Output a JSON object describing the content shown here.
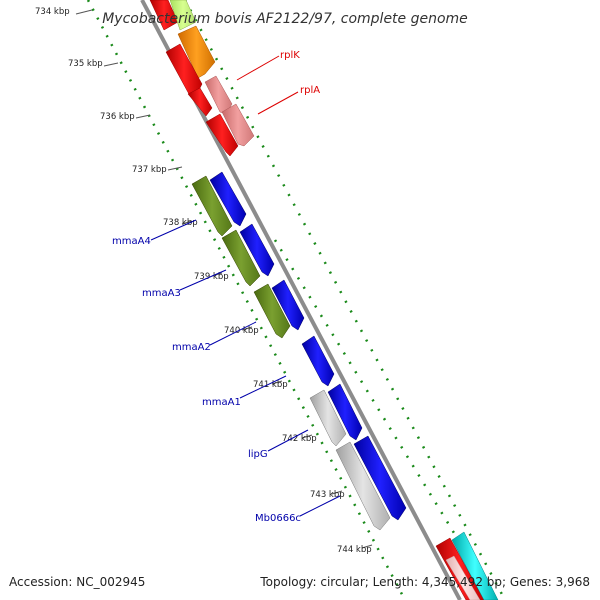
{
  "title": "Mycobacterium bovis AF2122/97, complete genome",
  "ticks": [
    "734 kbp",
    "735 kbp",
    "736 kbp",
    "737 kbp",
    "738 kbp",
    "739 kbp",
    "740 kbp",
    "741 kbp",
    "742 kbp",
    "743 kbp",
    "744 kbp"
  ],
  "labels_red": [
    "rplK",
    "rplA"
  ],
  "labels_blue": [
    "mmaA4",
    "mmaA3",
    "mmaA2",
    "mmaA1",
    "lipG",
    "Mb0666c"
  ],
  "footer": {
    "accession": "Accession: NC_002945",
    "summary": "Topology: circular; Length: 4,345,492 bp; Genes: 3,968"
  },
  "colors": {
    "backbone": "#8c8c8c",
    "tick_green": "#1a8a1a",
    "red_label": "#dd0000",
    "blue_label": "#0000aa"
  }
}
